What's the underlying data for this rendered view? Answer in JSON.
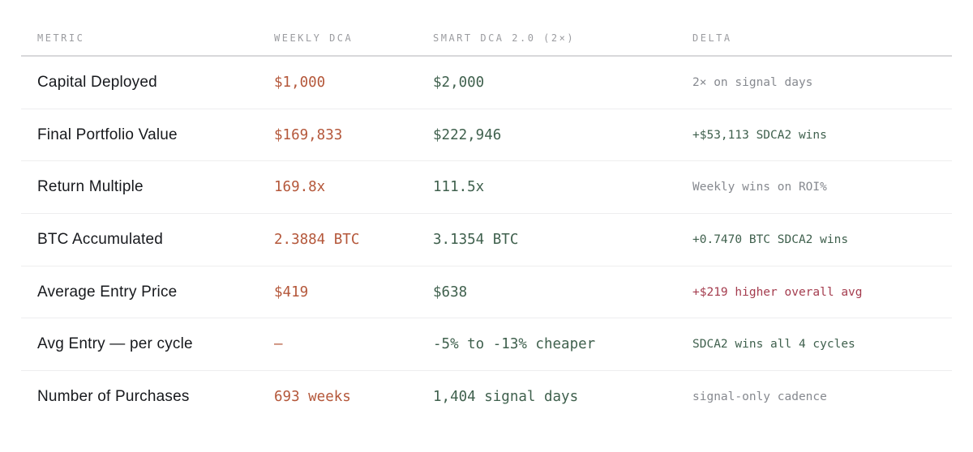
{
  "chart_data": {
    "type": "table",
    "columns": [
      "METRIC",
      "WEEKLY DCA",
      "SMART DCA 2.0 (2×)",
      "DELTA"
    ],
    "rows": [
      {
        "metric": "Capital Deployed",
        "weekly": "$1,000",
        "smart": "$2,000",
        "delta": "2× on signal days",
        "delta_tone": "neutral"
      },
      {
        "metric": "Final Portfolio Value",
        "weekly": "$169,833",
        "smart": "$222,946",
        "delta": "+$53,113 SDCA2 wins",
        "delta_tone": "positive"
      },
      {
        "metric": "Return Multiple",
        "weekly": "169.8x",
        "smart": "111.5x",
        "delta": "Weekly wins on ROI%",
        "delta_tone": "neutral"
      },
      {
        "metric": "BTC Accumulated",
        "weekly": "2.3884 BTC",
        "smart": "3.1354 BTC",
        "delta": "+0.7470 BTC SDCA2 wins",
        "delta_tone": "positive"
      },
      {
        "metric": "Average Entry Price",
        "weekly": "$419",
        "smart": "$638",
        "delta": "+$219 higher overall avg",
        "delta_tone": "negative"
      },
      {
        "metric": "Avg Entry — per cycle",
        "weekly": "–",
        "smart": "-5% to -13% cheaper",
        "delta": "SDCA2 wins all 4 cycles",
        "delta_tone": "positive"
      },
      {
        "metric": "Number of Purchases",
        "weekly": "693 weeks",
        "smart": "1,404 signal days",
        "delta": "signal-only cadence",
        "delta_tone": "neutral"
      }
    ]
  },
  "colors": {
    "header_text": "#9b9ca0",
    "metric_text": "#17191d",
    "weekly_value": "#b4573a",
    "smart_value": "#3f604d",
    "delta_positive": "#3f604d",
    "delta_negative": "#a43c4e",
    "delta_neutral": "#86898f",
    "rule_top": "#d8d8da",
    "rule_row": "#eeeeef"
  }
}
